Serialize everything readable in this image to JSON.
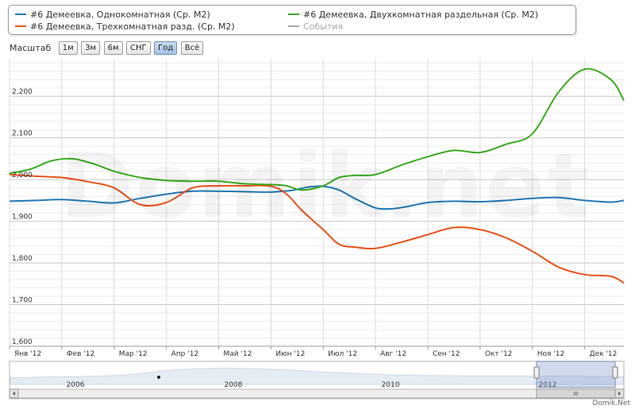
{
  "legend": {
    "items": [
      {
        "label": "#6 Демеевка, Однокомнатная (Ср. М2)",
        "color": "#1f78b4"
      },
      {
        "label": "#6 Демеевка, Трехкомнатная разд. (Ср. М2)",
        "color": "#e8511a"
      },
      {
        "label": "#6 Демеевка, Двухкомнатная раздельная (Ср. М2)",
        "color": "#3aaa1e"
      },
      {
        "label": "События",
        "color": "#a8a8a8"
      }
    ]
  },
  "range_selector": {
    "label": "Масштаб",
    "buttons": [
      "1м",
      "3м",
      "6м",
      "СНГ",
      "Год",
      "Всё"
    ],
    "active": "Год"
  },
  "watermark": "Domik.net",
  "credit": "Domik.Net",
  "navigator": {
    "labels": [
      "2006",
      "2008",
      "2010",
      "2012"
    ],
    "scroll_grip": "III"
  },
  "chart_data": {
    "type": "line",
    "x_ticks": [
      "Янв '12",
      "Фев '12",
      "Мар '12",
      "Апр '12",
      "Май '12",
      "Июн '12",
      "Июл '12",
      "Авг '12",
      "Сен '12",
      "Окт '12",
      "Ноя '12",
      "Дек '12"
    ],
    "y_ticks": [
      "1,600",
      "1,700",
      "1,800",
      "1,900",
      "2,000",
      "2,100",
      "2,200"
    ],
    "ylim": [
      1600,
      2290
    ],
    "xlim": [
      0,
      11.75
    ],
    "grid": true,
    "legend_position": "top",
    "series": [
      {
        "name": "#6 Демеевка, Однокомнатная (Ср. М2)",
        "color": "#1f78b4",
        "x": [
          0,
          0.5,
          1,
          1.5,
          2,
          2.5,
          3,
          3.5,
          4,
          4.5,
          5,
          5.4,
          5.7,
          6,
          6.3,
          6.6,
          7,
          7.3,
          7.6,
          8,
          8.5,
          9,
          9.5,
          10,
          10.5,
          11,
          11.5,
          11.75
        ],
        "y": [
          1948,
          1950,
          1952,
          1948,
          1944,
          1955,
          1965,
          1972,
          1972,
          1971,
          1970,
          1974,
          1982,
          1984,
          1975,
          1955,
          1932,
          1930,
          1935,
          1945,
          1948,
          1947,
          1950,
          1955,
          1957,
          1950,
          1946,
          1950
        ]
      },
      {
        "name": "#6 Демеевка, Трехкомнатная разд. (Ср. М2)",
        "color": "#e8511a",
        "x": [
          0,
          0.5,
          1,
          1.5,
          2,
          2.5,
          3,
          3.5,
          4,
          4.5,
          5,
          5.3,
          5.6,
          6,
          6.3,
          6.6,
          7,
          7.5,
          8,
          8.5,
          9,
          9.5,
          10,
          10.5,
          11,
          11.5,
          11.75
        ],
        "y": [
          2012,
          2008,
          2005,
          1995,
          1980,
          1940,
          1945,
          1980,
          1985,
          1985,
          1984,
          1965,
          1925,
          1880,
          1845,
          1838,
          1835,
          1850,
          1868,
          1885,
          1880,
          1860,
          1828,
          1790,
          1772,
          1768,
          1752
        ]
      },
      {
        "name": "#6 Демеевка, Двухкомнатная раздельная (Ср. М2)",
        "color": "#3aaa1e",
        "x": [
          0,
          0.4,
          0.8,
          1.2,
          1.6,
          2,
          2.5,
          3,
          3.5,
          4,
          4.5,
          5,
          5.3,
          5.6,
          6,
          6.3,
          6.6,
          7,
          7.5,
          8,
          8.5,
          9,
          9.5,
          10,
          10.5,
          11,
          11.5,
          11.75
        ],
        "y": [
          2015,
          2025,
          2045,
          2050,
          2038,
          2020,
          2005,
          1998,
          1996,
          1996,
          1990,
          1988,
          1985,
          1975,
          1985,
          2005,
          2010,
          2012,
          2035,
          2055,
          2070,
          2065,
          2085,
          2110,
          2210,
          2265,
          2240,
          2190
        ]
      }
    ]
  }
}
